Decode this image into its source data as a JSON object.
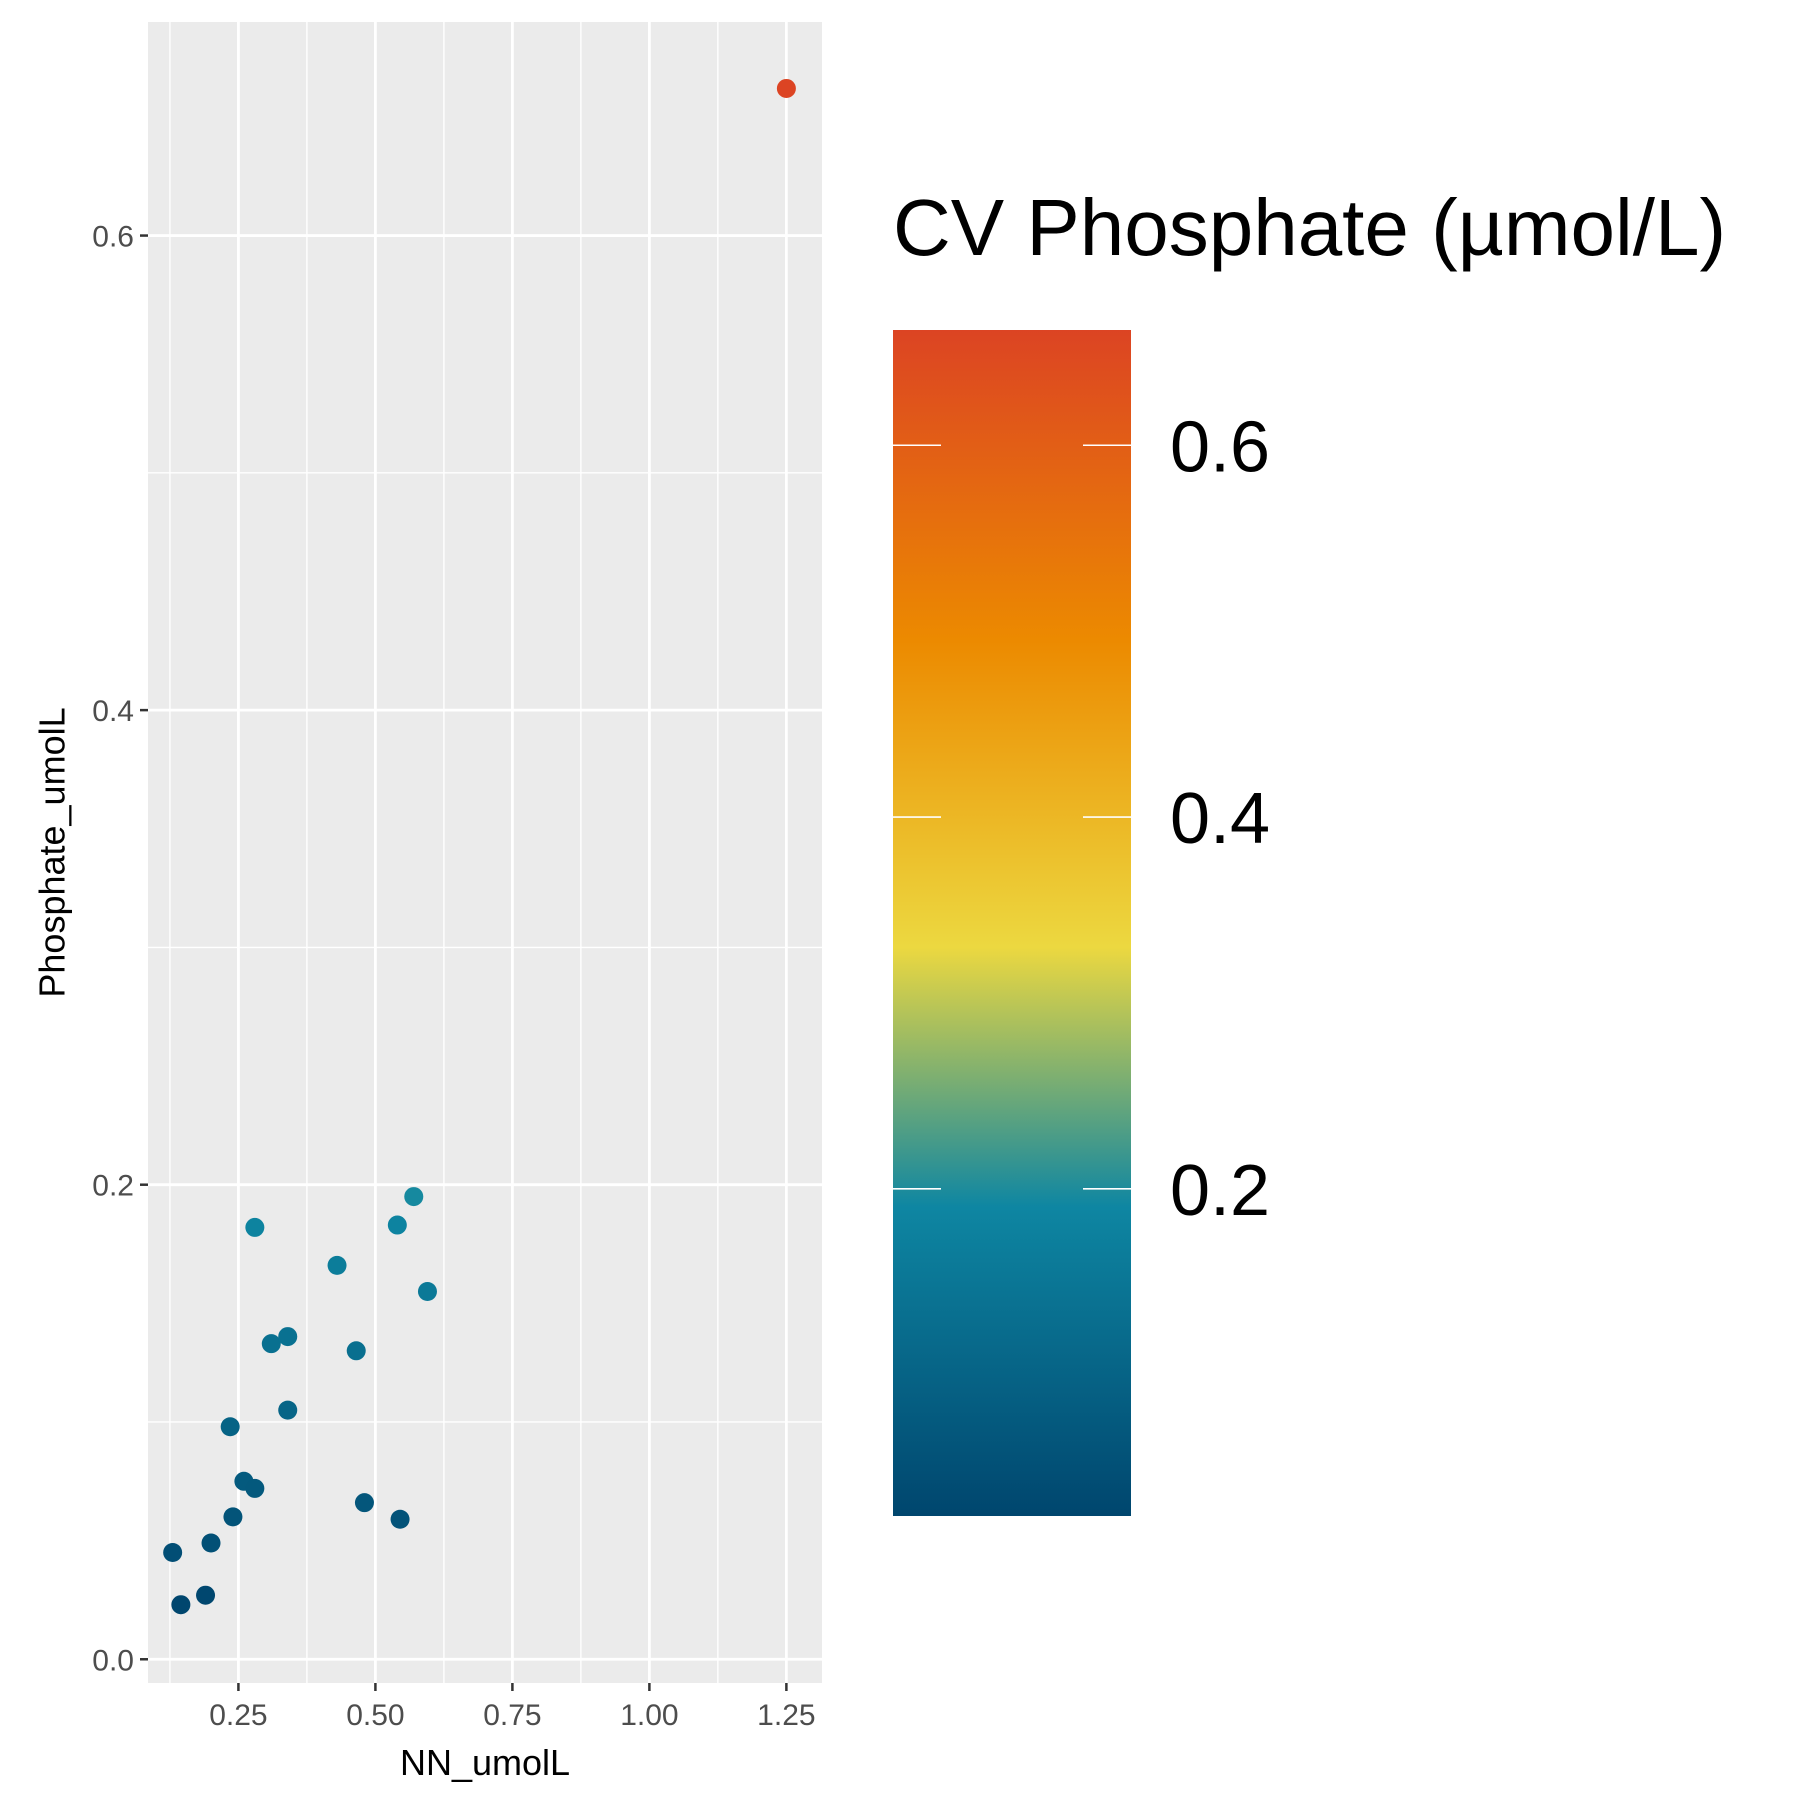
{
  "chart_data": {
    "type": "scatter",
    "xlabel": "NN_umolL",
    "ylabel": "Phosphate_umolL",
    "xlim": [
      0.085,
      1.315
    ],
    "ylim": [
      -0.01,
      0.69
    ],
    "x_ticks": [
      {
        "value": 0.25,
        "label": "0.25"
      },
      {
        "value": 0.5,
        "label": "0.50"
      },
      {
        "value": 0.75,
        "label": "0.75"
      },
      {
        "value": 1.0,
        "label": "1.00"
      },
      {
        "value": 1.25,
        "label": "1.25"
      }
    ],
    "y_ticks": [
      {
        "value": 0.0,
        "label": "0.0"
      },
      {
        "value": 0.2,
        "label": "0.2"
      },
      {
        "value": 0.4,
        "label": "0.4"
      },
      {
        "value": 0.6,
        "label": "0.6"
      }
    ],
    "grid": true,
    "color_scale": {
      "title": "CV Phosphate (µmol/L)",
      "range": [
        0.024,
        0.662
      ],
      "ticks": [
        {
          "value": 0.2,
          "label": "0.2"
        },
        {
          "value": 0.4,
          "label": "0.4"
        },
        {
          "value": 0.6,
          "label": "0.6"
        }
      ],
      "stops": [
        {
          "value": 0.024,
          "color": "#00466E"
        },
        {
          "value": 0.19,
          "color": "#0E86A2"
        },
        {
          "value": 0.33,
          "color": "#ECD840"
        },
        {
          "value": 0.495,
          "color": "#EC8A00"
        },
        {
          "value": 0.662,
          "color": "#DC4423"
        }
      ]
    },
    "points": [
      {
        "x": 0.13,
        "y": 0.045,
        "c": 0.045
      },
      {
        "x": 0.145,
        "y": 0.023,
        "c": 0.023
      },
      {
        "x": 0.19,
        "y": 0.027,
        "c": 0.027
      },
      {
        "x": 0.2,
        "y": 0.049,
        "c": 0.049
      },
      {
        "x": 0.235,
        "y": 0.098,
        "c": 0.098
      },
      {
        "x": 0.24,
        "y": 0.06,
        "c": 0.06
      },
      {
        "x": 0.26,
        "y": 0.075,
        "c": 0.075
      },
      {
        "x": 0.28,
        "y": 0.072,
        "c": 0.072
      },
      {
        "x": 0.28,
        "y": 0.182,
        "c": 0.182
      },
      {
        "x": 0.31,
        "y": 0.133,
        "c": 0.133
      },
      {
        "x": 0.34,
        "y": 0.136,
        "c": 0.136
      },
      {
        "x": 0.34,
        "y": 0.105,
        "c": 0.105
      },
      {
        "x": 0.43,
        "y": 0.166,
        "c": 0.166
      },
      {
        "x": 0.465,
        "y": 0.13,
        "c": 0.13
      },
      {
        "x": 0.48,
        "y": 0.066,
        "c": 0.066
      },
      {
        "x": 0.54,
        "y": 0.183,
        "c": 0.183
      },
      {
        "x": 0.545,
        "y": 0.059,
        "c": 0.059
      },
      {
        "x": 0.57,
        "y": 0.195,
        "c": 0.195
      },
      {
        "x": 0.595,
        "y": 0.155,
        "c": 0.155
      },
      {
        "x": 1.25,
        "y": 0.662,
        "c": 0.662
      }
    ]
  }
}
